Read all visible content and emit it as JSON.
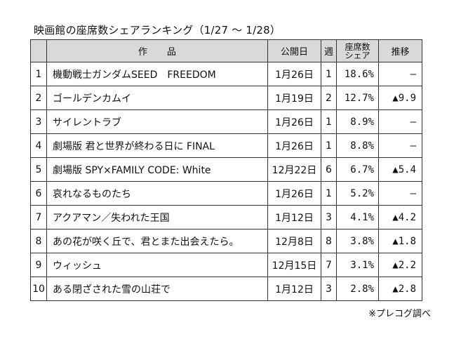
{
  "title": "映画館の座席数シェアランキング（1/27 ～ 1/28）",
  "headers": {
    "no": "",
    "title": "作品",
    "release": "公開日",
    "weeks": "週",
    "share_line1": "座席数",
    "share_line2": "シェア",
    "trend": "推移"
  },
  "rows": [
    {
      "no": "1",
      "title": "機動戦士ガンダムSEED　FREEDOM",
      "release": "1月26日",
      "weeks": "1",
      "share": "18.6%",
      "trend": "—"
    },
    {
      "no": "2",
      "title": "ゴールデンカムイ",
      "release": "1月19日",
      "weeks": "2",
      "share": "12.7%",
      "trend": "▲9.9"
    },
    {
      "no": "3",
      "title": "サイレントラブ",
      "release": "1月26日",
      "weeks": "1",
      "share": "8.9%",
      "trend": "—"
    },
    {
      "no": "4",
      "title": "劇場版 君と世界が終わる日に FINAL",
      "release": "1月26日",
      "weeks": "1",
      "share": "8.8%",
      "trend": "—"
    },
    {
      "no": "5",
      "title": "劇場版 SPY×FAMILY CODE: White",
      "release": "12月22日",
      "weeks": "6",
      "share": "6.7%",
      "trend": "▲5.4"
    },
    {
      "no": "6",
      "title": "哀れなるものたち",
      "release": "1月26日",
      "weeks": "1",
      "share": "5.2%",
      "trend": "—"
    },
    {
      "no": "7",
      "title": "アクアマン／失われた王国",
      "release": "1月12日",
      "weeks": "3",
      "share": "4.1%",
      "trend": "▲4.2"
    },
    {
      "no": "8",
      "title": "あの花が咲く丘で、君とまた出会えたら。",
      "release": "12月8日",
      "weeks": "8",
      "share": "3.8%",
      "trend": "▲1.8"
    },
    {
      "no": "9",
      "title": "ウィッシュ",
      "release": "12月15日",
      "weeks": "7",
      "share": "3.1%",
      "trend": "▲2.2"
    },
    {
      "no": "10",
      "title": "ある閉ざされた雪の山荘で",
      "release": "1月12日",
      "weeks": "3",
      "share": "2.8%",
      "trend": "▲2.8"
    }
  ],
  "source": "※プレコグ調べ"
}
